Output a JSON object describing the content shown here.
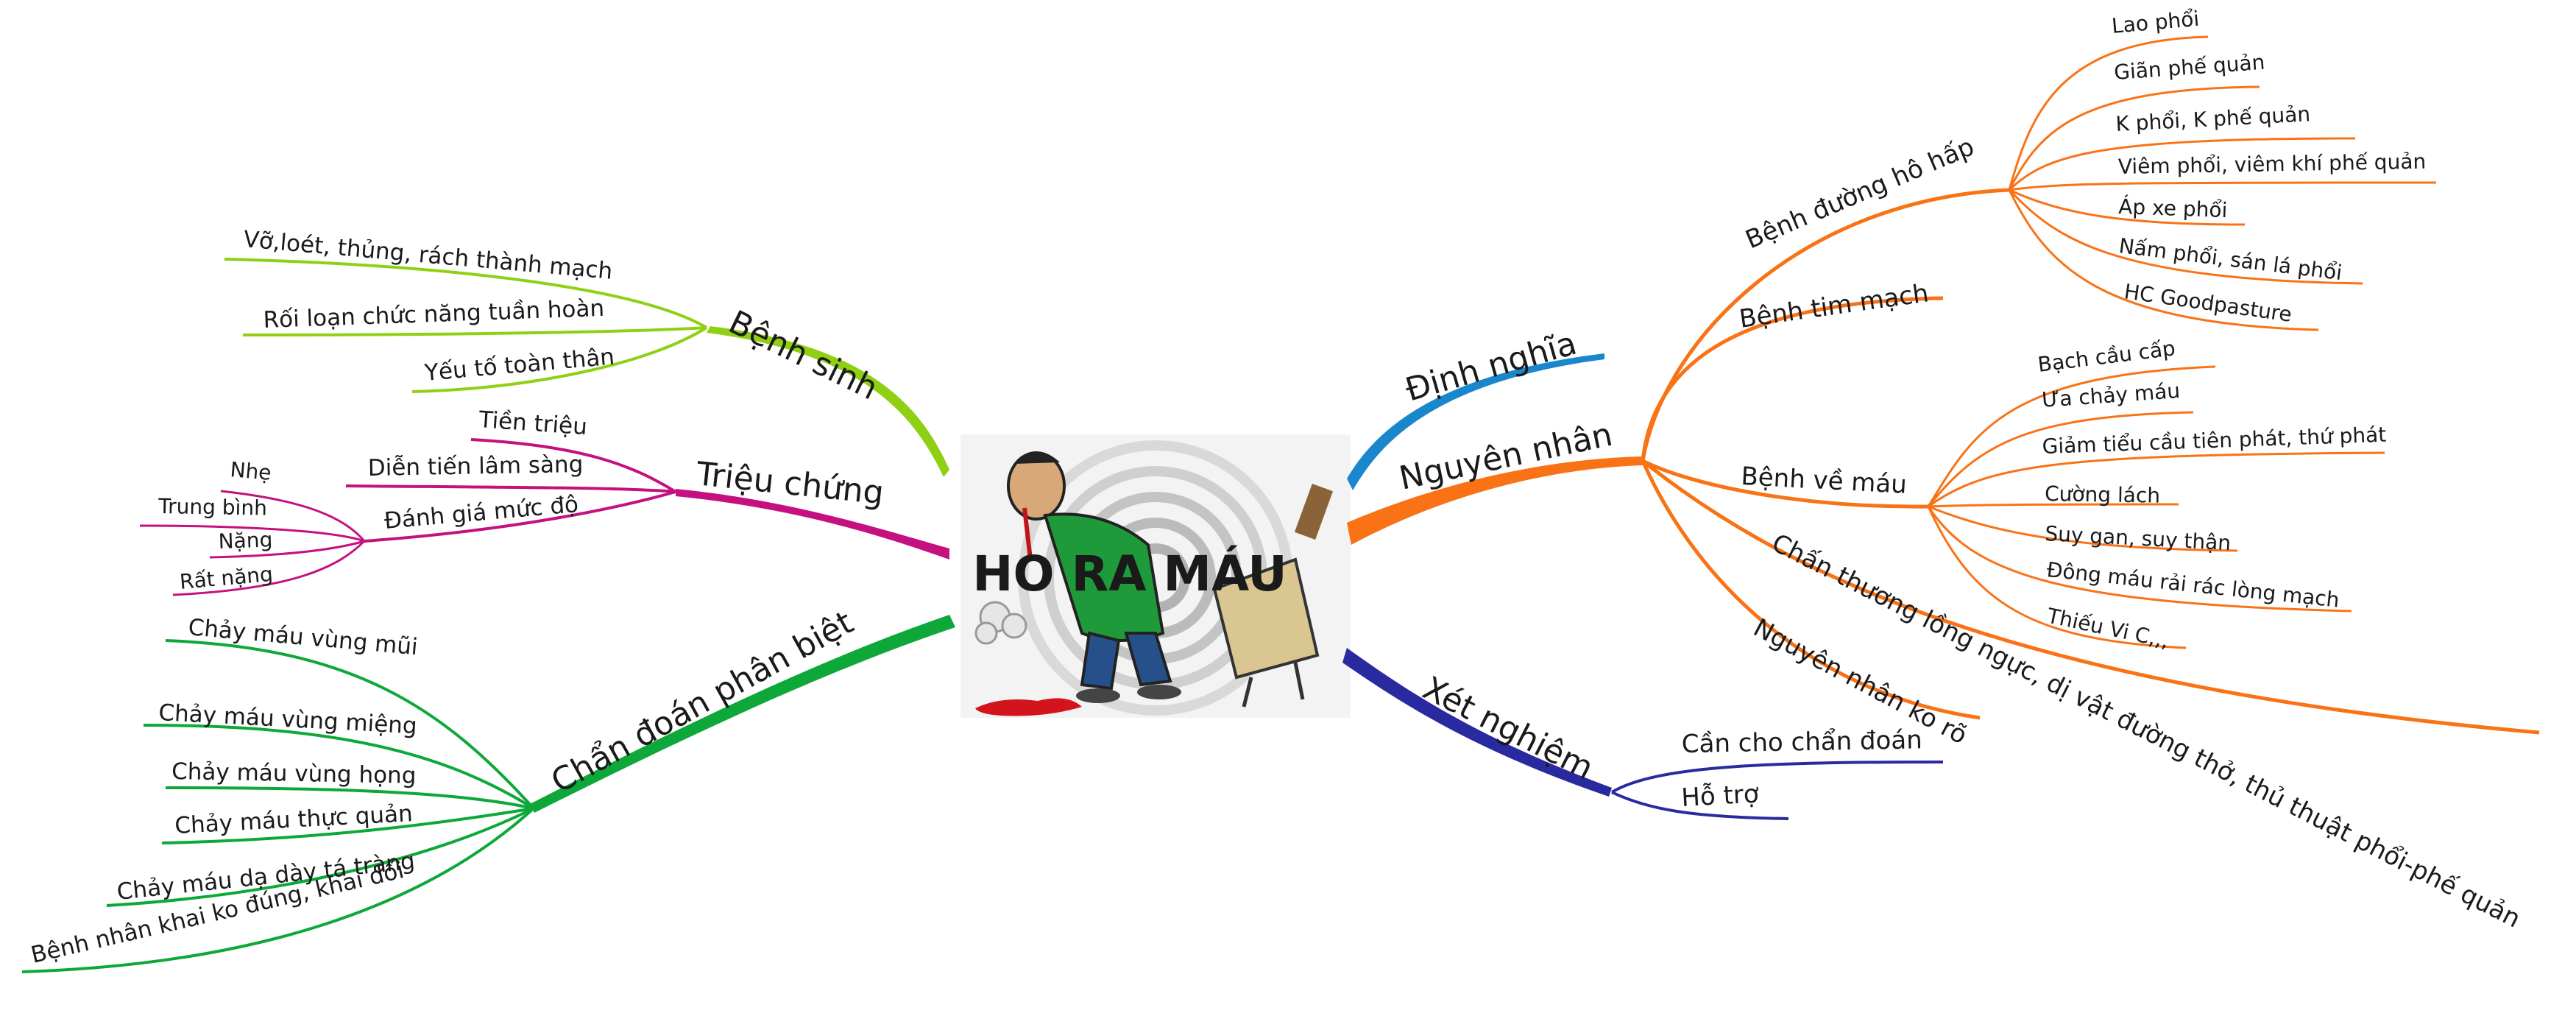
{
  "center": {
    "title": "HO RA MÁU"
  },
  "branches": {
    "benh_sinh": {
      "label": "Bệnh sinh",
      "color": "#8fd014",
      "items": [
        "Vỡ,loét, thủng, rách thành mạch",
        "Rối loạn chức năng tuần hoàn",
        "Yếu tố toàn thân"
      ]
    },
    "trieu_chung": {
      "label": "Triệu chứng",
      "color": "#c4117f",
      "items": [
        "Tiền triệu",
        "Diễn tiến lâm sàng",
        "Đánh giá mức độ"
      ],
      "muc_do": [
        "Nhẹ",
        "Trung bình",
        "Nặng",
        "Rất nặng"
      ]
    },
    "chan_doan": {
      "label": "Chẩn đoán phân biệt",
      "color": "#0ea83a",
      "items": [
        "Chảy máu vùng mũi",
        "Chảy máu vùng miệng",
        "Chảy máu vùng họng",
        "Chảy máu thực quản",
        "Chảy máu dạ dày tá tràng",
        "Bệnh nhân khai ko đúng, khai dối"
      ]
    },
    "dinh_nghia": {
      "label": "Định nghĩa",
      "color": "#1a86cc"
    },
    "nguyen_nhan": {
      "label": "Nguyên nhân",
      "color": "#f97316",
      "ho_hap": {
        "label": "Bệnh đường hô hấp",
        "items": [
          "Lao phổi",
          "Giãn phế quản",
          "K phổi, K phế quản",
          "Viêm phổi, viêm khí phế quản",
          "Áp xe phổi",
          "Nấm phổi, sán lá phổi",
          "HC Goodpasture"
        ]
      },
      "tim_mach": "Bệnh tim mạch",
      "mau": {
        "label": "Bệnh về máu",
        "items": [
          "Bạch cầu cấp",
          "Ưa chảy máu",
          "Giảm tiểu cầu tiên phát, thứ phát",
          "Cường lách",
          "Suy gan, suy thận",
          "Đông máu rải rác lòng mạch",
          "Thiếu Vi C,,,"
        ]
      },
      "chan_thuong": "Chấn thương lồng ngực, dị vật đường thở, thủ thuật phổi-phế quản",
      "ko_ro": "Nguyên nhân ko rõ"
    },
    "xet_nghiem": {
      "label": "Xét nghiệm",
      "color": "#2a2aa0",
      "items": [
        "Cần cho chẩn đoán",
        "Hỗ trợ"
      ]
    }
  }
}
